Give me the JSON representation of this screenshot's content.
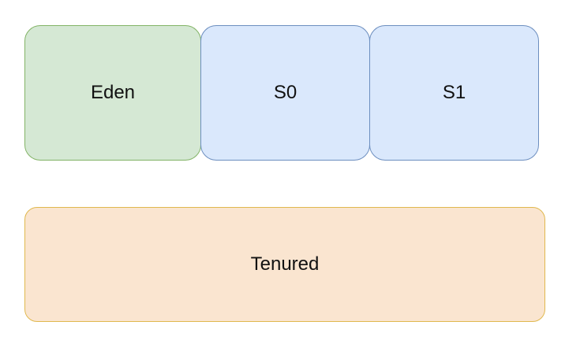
{
  "blocks": {
    "eden": {
      "label": "Eden",
      "fill": "#d5e8d4",
      "stroke": "#82b366"
    },
    "s0": {
      "label": "S0",
      "fill": "#dae8fc",
      "stroke": "#6c8ebf"
    },
    "s1": {
      "label": "S1",
      "fill": "#dae8fc",
      "stroke": "#6c8ebf"
    },
    "tenured": {
      "label": "Tenured",
      "fill": "#fae5d0",
      "stroke": "#e0b84e"
    }
  }
}
